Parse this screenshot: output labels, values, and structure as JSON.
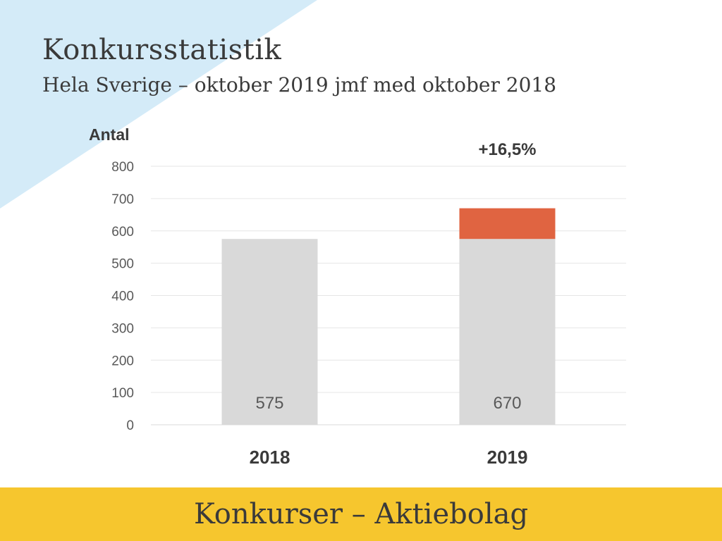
{
  "slide": {
    "title": "Konkursstatistik",
    "subtitle": "Hela Sverige – oktober 2019 jmf med oktober 2018",
    "footer": "Konkurser – Aktiebolag",
    "colors": {
      "background_triangle": "#d4ebf8",
      "footer_bar": "#f6c62e",
      "text": "#3a3a3a"
    }
  },
  "chart_data": {
    "type": "bar",
    "stacked": true,
    "ylabel": "Antal",
    "ylim": [
      0,
      800
    ],
    "yticks": [
      0,
      100,
      200,
      300,
      400,
      500,
      600,
      700,
      800
    ],
    "grid": true,
    "categories": [
      "2018",
      "2019"
    ],
    "series": [
      {
        "values": [
          575,
          575
        ],
        "color": "#d9d9d9"
      },
      {
        "values": [
          0,
          95
        ],
        "color": "#e06441"
      }
    ],
    "data_labels": [
      "575",
      "670"
    ],
    "annotation": {
      "category": "2019",
      "text": "+16,5%"
    }
  }
}
